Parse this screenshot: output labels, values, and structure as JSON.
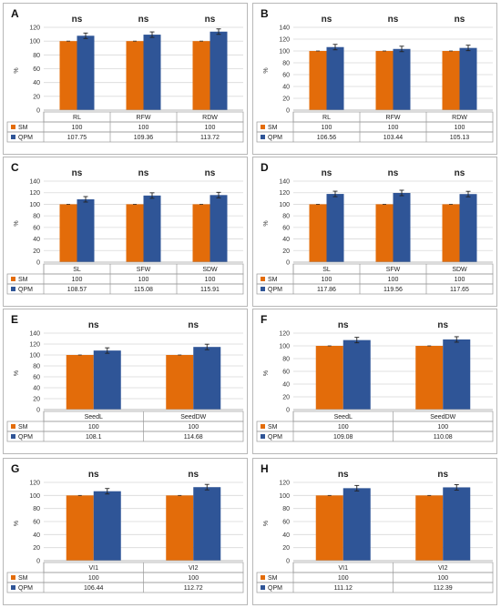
{
  "colors": {
    "SM": "#e36c0a",
    "QPM": "#2f5597"
  },
  "chart_data": [
    {
      "panel": "A",
      "type": "bar",
      "ylabel": "%",
      "ylim": [
        0,
        120
      ],
      "yticks": [
        0,
        20,
        40,
        60,
        80,
        100,
        120
      ],
      "categories": [
        "RL",
        "RFW",
        "RDW"
      ],
      "annotations": [
        "ns",
        "ns",
        "ns"
      ],
      "series": [
        {
          "name": "SM",
          "values": [
            100,
            100,
            100
          ],
          "labels": [
            "100",
            "100",
            "100"
          ]
        },
        {
          "name": "QPM",
          "values": [
            107.75,
            109.36,
            113.72
          ],
          "labels": [
            "107.75",
            "109.36",
            "113.72"
          ]
        }
      ],
      "grid": true,
      "legend": "table-below"
    },
    {
      "panel": "B",
      "type": "bar",
      "ylabel": "%",
      "ylim": [
        0,
        140
      ],
      "yticks": [
        0,
        20,
        40,
        60,
        80,
        100,
        120,
        140
      ],
      "categories": [
        "RL",
        "RFW",
        "RDW"
      ],
      "annotations": [
        "ns",
        "ns",
        "ns"
      ],
      "series": [
        {
          "name": "SM",
          "values": [
            100,
            100,
            100
          ],
          "labels": [
            "100",
            "100",
            "100"
          ]
        },
        {
          "name": "QPM",
          "values": [
            106.56,
            103.44,
            105.13
          ],
          "labels": [
            "106.56",
            "103.44",
            "105.13"
          ]
        }
      ],
      "grid": true,
      "legend": "table-below"
    },
    {
      "panel": "C",
      "type": "bar",
      "ylabel": "%",
      "ylim": [
        0,
        140
      ],
      "yticks": [
        0,
        20,
        40,
        60,
        80,
        100,
        120,
        140
      ],
      "categories": [
        "SL",
        "SFW",
        "SDW"
      ],
      "annotations": [
        "ns",
        "ns",
        "ns"
      ],
      "series": [
        {
          "name": "SM",
          "values": [
            100,
            100,
            100
          ],
          "labels": [
            "100",
            "100",
            "100"
          ]
        },
        {
          "name": "QPM",
          "values": [
            108.57,
            115.08,
            115.91
          ],
          "labels": [
            "108.57",
            "115.08",
            "115.91"
          ]
        }
      ],
      "grid": true,
      "legend": "table-below"
    },
    {
      "panel": "D",
      "type": "bar",
      "ylabel": "%",
      "ylim": [
        0,
        140
      ],
      "yticks": [
        0,
        20,
        40,
        60,
        80,
        100,
        120,
        140
      ],
      "categories": [
        "SL",
        "SFW",
        "SDW"
      ],
      "annotations": [
        "ns",
        "ns",
        "ns"
      ],
      "series": [
        {
          "name": "SM",
          "values": [
            100,
            100,
            100
          ],
          "labels": [
            "100",
            "100",
            "100"
          ]
        },
        {
          "name": "QPM",
          "values": [
            117.86,
            119.56,
            117.65
          ],
          "labels": [
            "117.86",
            "119.56",
            "117.65"
          ]
        }
      ],
      "grid": true,
      "legend": "table-below"
    },
    {
      "panel": "E",
      "type": "bar",
      "ylabel": "%",
      "ylim": [
        0,
        140
      ],
      "yticks": [
        0,
        20,
        40,
        60,
        80,
        100,
        120,
        140
      ],
      "categories": [
        "SeedL",
        "SeedDW"
      ],
      "annotations": [
        "ns",
        "ns"
      ],
      "series": [
        {
          "name": "SM",
          "values": [
            100,
            100
          ],
          "labels": [
            "100",
            "100"
          ]
        },
        {
          "name": "QPM",
          "values": [
            108.1,
            114.68
          ],
          "labels": [
            "108.1",
            "114.68"
          ]
        }
      ],
      "grid": true,
      "legend": "table-below"
    },
    {
      "panel": "F",
      "type": "bar",
      "ylabel": "%",
      "ylim": [
        0,
        120
      ],
      "yticks": [
        0,
        20,
        40,
        60,
        80,
        100,
        120
      ],
      "categories": [
        "SeedL",
        "SeedDW"
      ],
      "annotations": [
        "ns",
        "ns"
      ],
      "series": [
        {
          "name": "SM",
          "values": [
            100,
            100
          ],
          "labels": [
            "100",
            "100"
          ]
        },
        {
          "name": "QPM",
          "values": [
            109.08,
            110.08
          ],
          "labels": [
            "109.08",
            "110.08"
          ]
        }
      ],
      "grid": true,
      "legend": "table-below"
    },
    {
      "panel": "G",
      "type": "bar",
      "ylabel": "%",
      "ylim": [
        0,
        120
      ],
      "yticks": [
        0,
        20,
        40,
        60,
        80,
        100,
        120
      ],
      "categories": [
        "VI1",
        "VI2"
      ],
      "annotations": [
        "ns",
        "ns"
      ],
      "series": [
        {
          "name": "SM",
          "values": [
            100,
            100
          ],
          "labels": [
            "100",
            "100"
          ]
        },
        {
          "name": "QPM",
          "values": [
            106.44,
            112.72
          ],
          "labels": [
            "106.44",
            "112.72"
          ]
        }
      ],
      "grid": true,
      "legend": "table-below"
    },
    {
      "panel": "H",
      "type": "bar",
      "ylabel": "%",
      "ylim": [
        0,
        120
      ],
      "yticks": [
        0,
        20,
        40,
        60,
        80,
        100,
        120
      ],
      "categories": [
        "VI1",
        "VI2"
      ],
      "annotations": [
        "ns",
        "ns"
      ],
      "series": [
        {
          "name": "SM",
          "values": [
            100,
            100
          ],
          "labels": [
            "100",
            "100"
          ]
        },
        {
          "name": "QPM",
          "values": [
            111.12,
            112.39
          ],
          "labels": [
            "111.12",
            "112.39"
          ]
        }
      ],
      "grid": true,
      "legend": "table-below"
    }
  ]
}
